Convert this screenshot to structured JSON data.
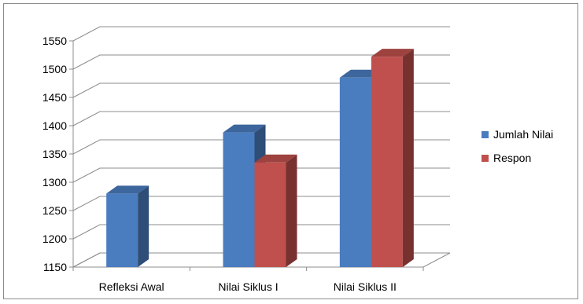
{
  "chart_data": {
    "type": "bar",
    "categories": [
      "Refleksi Awal",
      "Nilai Siklus I",
      "Nilai Siklus II"
    ],
    "series": [
      {
        "name": "Jumlah Nilai",
        "values": [
          1280,
          1388,
          1485
        ],
        "color": "#4a7cc0"
      },
      {
        "name": "Respon",
        "values": [
          null,
          1335,
          1522
        ],
        "color": "#c0504d"
      }
    ],
    "ylim": [
      1150,
      1550
    ],
    "yticks": [
      1150,
      1200,
      1250,
      1300,
      1350,
      1400,
      1450,
      1500,
      1550
    ],
    "grid": true,
    "legend": "right",
    "style": "3d-clustered-column"
  }
}
